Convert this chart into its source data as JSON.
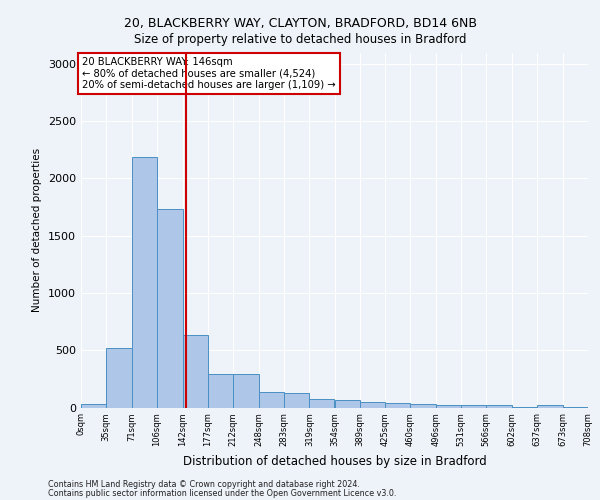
{
  "title_line1": "20, BLACKBERRY WAY, CLAYTON, BRADFORD, BD14 6NB",
  "title_line2": "Size of property relative to detached houses in Bradford",
  "xlabel": "Distribution of detached houses by size in Bradford",
  "ylabel": "Number of detached properties",
  "footer_line1": "Contains HM Land Registry data © Crown copyright and database right 2024.",
  "footer_line2": "Contains public sector information licensed under the Open Government Licence v3.0.",
  "annotation_title": "20 BLACKBERRY WAY: 146sqm",
  "annotation_line2": "← 80% of detached houses are smaller (4,524)",
  "annotation_line3": "20% of semi-detached houses are larger (1,109) →",
  "property_size": 146,
  "bin_edges": [
    0,
    35,
    71,
    106,
    142,
    177,
    212,
    248,
    283,
    319,
    354,
    389,
    425,
    460,
    496,
    531,
    566,
    602,
    637,
    673,
    708
  ],
  "bar_values": [
    30,
    520,
    2185,
    1730,
    630,
    295,
    295,
    135,
    130,
    75,
    65,
    45,
    35,
    30,
    20,
    20,
    20,
    5,
    20,
    5
  ],
  "bar_color": "#aec6e8",
  "bar_edge_color": "#4a90c4",
  "vline_color": "#cc0000",
  "vline_x": 146,
  "ylim": [
    0,
    3100
  ],
  "yticks": [
    0,
    500,
    1000,
    1500,
    2000,
    2500,
    3000
  ],
  "background_color": "#eef2f9",
  "grid_color": "#ffffff",
  "annotation_box_color": "#ffffff",
  "annotation_box_edge": "#cc0000"
}
